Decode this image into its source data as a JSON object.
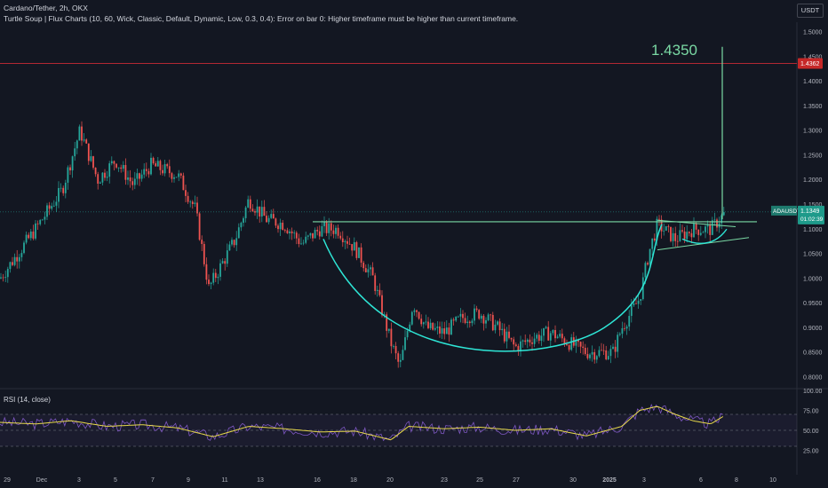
{
  "header": {
    "symbol_line": "Cardano/Tether, 2h, OKX",
    "indicator_line": "Turtle Soup | Flux Charts (10, 60, Wick, Classic, Default, Dynamic, Low, 0.3, 0.4): Error on bar 0: Higher timeframe must be higher than current timeframe."
  },
  "currency_button": "USDT",
  "colors": {
    "background": "#131722",
    "up": "#26a69a",
    "down": "#ef5350",
    "resistance": "#b22833",
    "pattern": "#7ad9a4",
    "cup": "#2ee6d6",
    "rsi": "#7e57c2",
    "rsi_ma": "#e8d94b"
  },
  "chart_data": [
    {
      "type": "candlestick",
      "title": "ADAUSDT",
      "ylim": [
        0.78,
        1.52
      ],
      "y_ticks": [
        "1.5000",
        "1.4500",
        "1.4000",
        "1.3500",
        "1.3000",
        "1.2500",
        "1.2000",
        "1.1500",
        "1.1000",
        "1.0500",
        "1.0000",
        "0.9500",
        "0.9000",
        "0.8500",
        "0.8000"
      ],
      "x_tick_labels": [
        "29",
        "Dec",
        "3",
        "5",
        "7",
        "9",
        "11",
        "13",
        "16",
        "18",
        "20",
        "23",
        "25",
        "27",
        "30",
        "2025",
        "3",
        "6",
        "8",
        "10"
      ],
      "price_path": [
        [
          0,
          1.0
        ],
        [
          40,
          1.1
        ],
        [
          70,
          1.18
        ],
        [
          90,
          1.3
        ],
        [
          110,
          1.2
        ],
        [
          130,
          1.24
        ],
        [
          150,
          1.19
        ],
        [
          170,
          1.23
        ],
        [
          200,
          1.21
        ],
        [
          220,
          1.14
        ],
        [
          235,
          0.98
        ],
        [
          250,
          1.03
        ],
        [
          265,
          1.08
        ],
        [
          280,
          1.16
        ],
        [
          300,
          1.12
        ],
        [
          320,
          1.11
        ],
        [
          340,
          1.07
        ],
        [
          360,
          1.1
        ],
        [
          380,
          1.1
        ],
        [
          400,
          1.06
        ],
        [
          420,
          1.0
        ],
        [
          440,
          0.87
        ],
        [
          450,
          0.82
        ],
        [
          465,
          0.95
        ],
        [
          480,
          0.9
        ],
        [
          500,
          0.89
        ],
        [
          520,
          0.92
        ],
        [
          540,
          0.93
        ],
        [
          560,
          0.9
        ],
        [
          580,
          0.86
        ],
        [
          600,
          0.88
        ],
        [
          620,
          0.89
        ],
        [
          640,
          0.87
        ],
        [
          660,
          0.85
        ],
        [
          690,
          0.85
        ],
        [
          700,
          0.9
        ],
        [
          720,
          0.96
        ],
        [
          730,
          1.05
        ],
        [
          740,
          1.11
        ],
        [
          760,
          1.08
        ],
        [
          780,
          1.1
        ],
        [
          800,
          1.1
        ],
        [
          815,
          1.13
        ]
      ],
      "breakout_wick": {
        "x": 813,
        "value": 1.47
      },
      "resistance_level": 1.4362,
      "neckline": 1.115,
      "target_label": "1.4350",
      "price_labels": [
        {
          "text": "1.4362",
          "value": 1.4362
        },
        {
          "text": "ADAUSDT",
          "value": 1.1349
        },
        {
          "text": "1.1349",
          "value": 1.1349
        },
        {
          "text": "01:02:39",
          "value": 1.118
        }
      ]
    },
    {
      "type": "line",
      "title": "RSI (14, close)",
      "ylim": [
        0,
        100
      ],
      "y_ticks": [
        "100.00",
        "75.00",
        "50.00",
        "25.00"
      ],
      "levels": [
        70,
        50,
        30
      ],
      "rsi_path": [
        [
          0,
          60
        ],
        [
          40,
          58
        ],
        [
          80,
          62
        ],
        [
          120,
          55
        ],
        [
          160,
          57
        ],
        [
          200,
          53
        ],
        [
          240,
          42
        ],
        [
          280,
          55
        ],
        [
          320,
          52
        ],
        [
          360,
          48
        ],
        [
          400,
          49
        ],
        [
          440,
          38
        ],
        [
          460,
          55
        ],
        [
          500,
          52
        ],
        [
          540,
          54
        ],
        [
          580,
          50
        ],
        [
          620,
          52
        ],
        [
          660,
          43
        ],
        [
          700,
          55
        ],
        [
          720,
          75
        ],
        [
          740,
          80
        ],
        [
          760,
          70
        ],
        [
          780,
          62
        ],
        [
          800,
          58
        ],
        [
          815,
          68
        ]
      ]
    }
  ]
}
